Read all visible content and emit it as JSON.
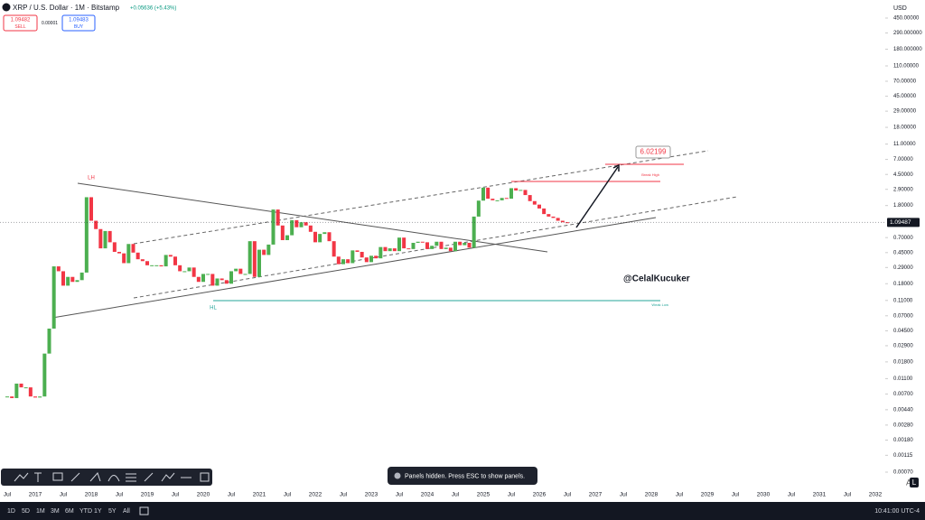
{
  "header": {
    "title": "XRP / U.S. Dollar · 1M · Bitstamp",
    "change": "+0.05636 (+5.43%)"
  },
  "order_panel": {
    "sell_price": "1.09482",
    "sell": "SELL",
    "spread": "0.00001",
    "buy_price": "1.09483",
    "buy": "BUY"
  },
  "chart": {
    "type": "candlestick",
    "currency": "USD",
    "log_scale": true,
    "yticks": [
      {
        "value": 450,
        "label": "450.00000"
      },
      {
        "value": 290,
        "label": "290.000000"
      },
      {
        "value": 180,
        "label": "180.000000"
      },
      {
        "value": 110,
        "label": "110.00000"
      },
      {
        "value": 70,
        "label": "70.00000"
      },
      {
        "value": 45,
        "label": "45.00000"
      },
      {
        "value": 29,
        "label": "29.00000"
      },
      {
        "value": 18,
        "label": "18.00000"
      },
      {
        "value": 11,
        "label": "11.00000"
      },
      {
        "value": 7,
        "label": "7.00000"
      },
      {
        "value": 4.5,
        "label": "4.50000"
      },
      {
        "value": 2.9,
        "label": "2.90000"
      },
      {
        "value": 1.8,
        "label": "1.80000"
      },
      {
        "value": 0.7,
        "label": "0.70000"
      },
      {
        "value": 0.45,
        "label": "0.45000"
      },
      {
        "value": 0.29,
        "label": "0.29000"
      },
      {
        "value": 0.18,
        "label": "0.18000"
      },
      {
        "value": 0.11,
        "label": "0.11000"
      },
      {
        "value": 0.07,
        "label": "0.07000"
      },
      {
        "value": 0.045,
        "label": "0.04500"
      },
      {
        "value": 0.029,
        "label": "0.02900"
      },
      {
        "value": 0.018,
        "label": "0.01800"
      },
      {
        "value": 0.011,
        "label": "0.01100"
      },
      {
        "value": 0.007,
        "label": "0.00700"
      },
      {
        "value": 0.0044,
        "label": "0.00440"
      },
      {
        "value": 0.0028,
        "label": "0.00280"
      },
      {
        "value": 0.0018,
        "label": "0.00180"
      },
      {
        "value": 0.00115,
        "label": "0.00115"
      },
      {
        "value": 0.0007,
        "label": "0.00070"
      }
    ],
    "current_price": 1.09487,
    "current_price_label": "1.09487",
    "x_labels": [
      "Jul",
      "2017",
      "Jul",
      "2018",
      "Jul",
      "2019",
      "Jul",
      "2020",
      "Jul",
      "2021",
      "Jul",
      "2022",
      "Jul",
      "2023",
      "Jul",
      "2024",
      "Jul",
      "2025",
      "Jul",
      "2026",
      "Jul",
      "2027",
      "Jul",
      "2028",
      "Jul",
      "2029",
      "Jul",
      "2030",
      "Jul",
      "2031",
      "Jul",
      "2032"
    ],
    "closes": [
      0.0065,
      0.0062,
      0.0095,
      0.0085,
      0.0085,
      0.0065,
      0.0063,
      0.0065,
      0.023,
      0.048,
      0.3,
      0.26,
      0.17,
      0.22,
      0.19,
      0.2,
      0.25,
      2.3,
      1.15,
      0.9,
      0.51,
      0.85,
      0.61,
      0.46,
      0.44,
      0.33,
      0.58,
      0.45,
      0.37,
      0.35,
      0.31,
      0.31,
      0.31,
      0.3,
      0.42,
      0.4,
      0.31,
      0.26,
      0.26,
      0.29,
      0.22,
      0.19,
      0.24,
      0.24,
      0.17,
      0.21,
      0.2,
      0.18,
      0.26,
      0.28,
      0.24,
      0.24,
      0.63,
      0.22,
      0.49,
      0.42,
      0.57,
      1.6,
      1.0,
      0.65,
      0.75,
      1.17,
      0.95,
      1.1,
      1.0,
      0.83,
      0.61,
      0.78,
      0.82,
      0.63,
      0.4,
      0.32,
      0.37,
      0.33,
      0.48,
      0.46,
      0.39,
      0.34,
      0.41,
      0.38,
      0.53,
      0.47,
      0.51,
      0.47,
      0.7,
      0.51,
      0.5,
      0.6,
      0.62,
      0.61,
      0.5,
      0.55,
      0.62,
      0.5,
      0.52,
      0.47,
      0.62,
      0.56,
      0.6,
      0.52,
      1.3,
      2.08,
      3.05,
      2.2,
      2.1,
      2.1,
      2.25,
      2.2,
      3.0,
      2.8,
      2.85,
      2.45,
      2.05,
      1.85,
      1.65,
      1.4,
      1.3,
      1.25,
      1.15,
      1.1,
      1.09487
    ],
    "up_color": "#4caf50",
    "down_color": "#f23645"
  },
  "annotations": {
    "lh": "LH",
    "hl": "HL",
    "target": "6.02199",
    "break_high": "Break High",
    "weak_low": "Weak Low",
    "author": "@CelalKucuker"
  },
  "toast": "Panels hidden. Press ESC to show panels.",
  "footer": {
    "ranges": [
      "1D",
      "5D",
      "1M",
      "3M",
      "6M",
      "YTD",
      "1Y",
      "5Y",
      "All"
    ],
    "clock": "10:41:00 UTC-4"
  }
}
